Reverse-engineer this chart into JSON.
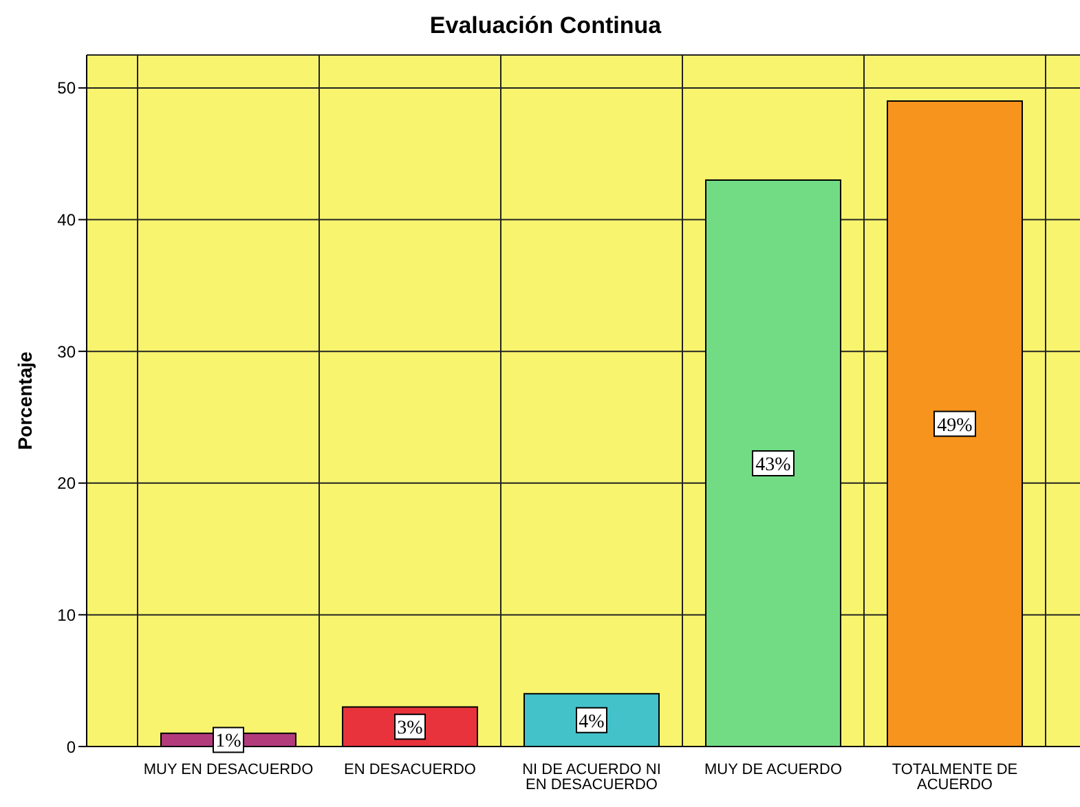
{
  "chart_data": {
    "type": "bar",
    "title": "Evaluación Continua",
    "ylabel": "Porcentaje",
    "categories": [
      "MUY EN DESACUERDO",
      "EN DESACUERDO",
      "NI DE ACUERDO NI EN DESACUERDO",
      "MUY DE ACUERDO",
      "TOTALMENTE DE ACUERDO"
    ],
    "values": [
      1,
      3,
      4,
      43,
      49
    ],
    "colors": [
      "#b23b7c",
      "#e8333c",
      "#44c2c9",
      "#72dc84",
      "#f7941d"
    ],
    "value_labels": [
      "1%",
      "3%",
      "4%",
      "43%",
      "49%"
    ],
    "ylim": [
      0,
      52.5
    ],
    "yticks": [
      0,
      10,
      20,
      30,
      40,
      50
    ],
    "grid": true
  }
}
